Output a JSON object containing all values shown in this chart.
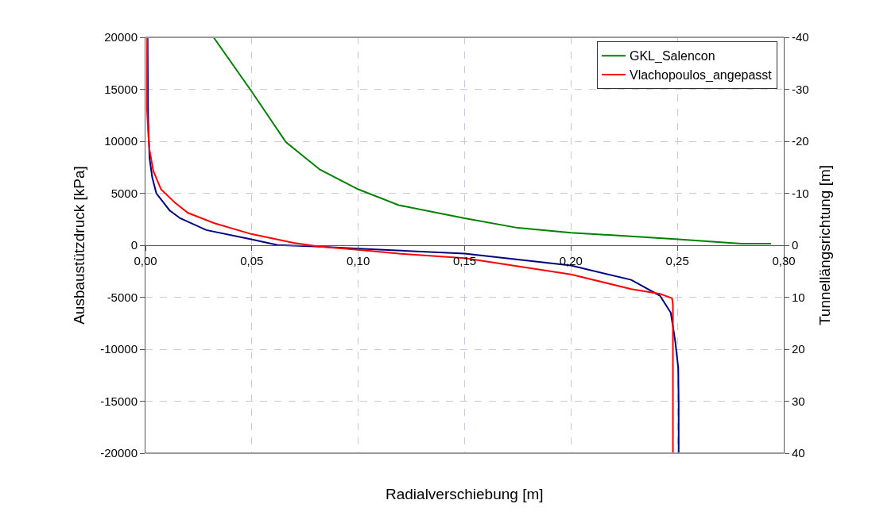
{
  "chart_data": {
    "type": "line",
    "xlabel": "Radialverschiebung [m]",
    "ylabel": "Ausbaustützdruck [kPa]",
    "y2label": "Tunnellängsrichtung [m]",
    "series": [
      {
        "name": "GKL_Salencon",
        "color": "#008000",
        "x": [
          0.032,
          0.0497,
          0.066,
          0.082,
          0.1,
          0.119,
          0.15,
          0.175,
          0.2,
          0.249,
          0.28,
          0.294
        ],
        "values": [
          20000,
          14850,
          9920,
          7270,
          5380,
          3860,
          2600,
          1670,
          1210,
          600,
          150,
          150
        ]
      },
      {
        "color": "#000080",
        "x": [
          0.001,
          0.0012,
          0.0015,
          0.0019,
          0.0032,
          0.0051,
          0.0113,
          0.0163,
          0.0286,
          0.0497,
          0.0621,
          0.082,
          0.1,
          0.15,
          0.2,
          0.2283,
          0.2418,
          0.2469,
          0.249,
          0.2504,
          0.2506,
          0.2506
        ],
        "values": [
          20000,
          13000,
          10680,
          8400,
          6500,
          5000,
          3360,
          2600,
          1460,
          580,
          20,
          -130,
          -330,
          -810,
          -1950,
          -3330,
          -4850,
          -6490,
          -9240,
          -11800,
          -15300,
          -20000
        ]
      },
      {
        "name": "Vlachopoulos_angepasst",
        "color": "#ff0000",
        "x": [
          0.0008,
          0.0007,
          0.0014,
          0.0019,
          0.0037,
          0.0073,
          0.0138,
          0.02,
          0.0324,
          0.0497,
          0.0696,
          0.082,
          0.1,
          0.119,
          0.15,
          0.2,
          0.2283,
          0.2418,
          0.2475,
          0.2479,
          0.2479
        ],
        "values": [
          20000,
          13100,
          10450,
          9170,
          7140,
          5380,
          4110,
          3110,
          2120,
          1080,
          230,
          -130,
          -430,
          -810,
          -1240,
          -2800,
          -4220,
          -4670,
          -5100,
          -5730,
          -20000
        ]
      }
    ],
    "xlim": [
      0,
      0.3
    ],
    "xticks": [
      {
        "value": 0,
        "label": "0,00"
      },
      {
        "value": 0.05,
        "label": "0,05"
      },
      {
        "value": 0.1,
        "label": "0,10"
      },
      {
        "value": 0.15,
        "label": "0,15"
      },
      {
        "value": 0.2,
        "label": "0,20"
      },
      {
        "value": 0.25,
        "label": "0,25"
      },
      {
        "value": 0.3,
        "label": "0,30"
      }
    ],
    "ylim": [
      -20000,
      20000
    ],
    "yticks": [
      -20000,
      -15000,
      -10000,
      -5000,
      0,
      5000,
      10000,
      15000,
      20000
    ],
    "y2lim": [
      40,
      -40
    ],
    "y2ticks": [
      -40,
      -30,
      -20,
      -10,
      0,
      10,
      20,
      30,
      40
    ],
    "grid": true,
    "legend": "top right",
    "line_style": "solid",
    "marker": "none"
  }
}
